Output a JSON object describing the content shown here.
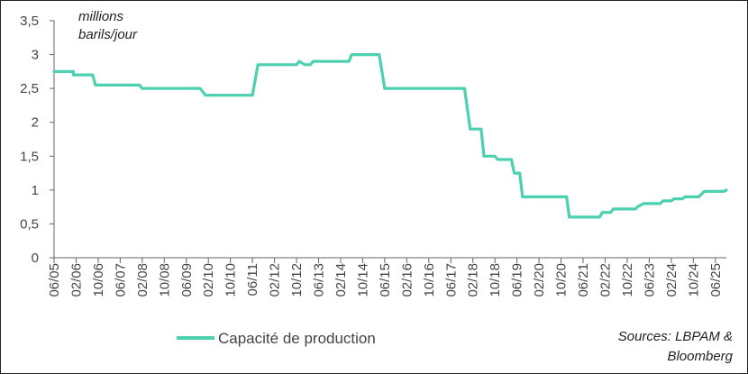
{
  "chart_data": {
    "type": "line",
    "ylabel_lines": [
      "millions",
      "barils/jour"
    ],
    "ylim": [
      0,
      3.5
    ],
    "y_ticks": [
      "0",
      "0,5",
      "1",
      "1,5",
      "2",
      "2,5",
      "3",
      "3,5"
    ],
    "x_start": "2005-06",
    "x_end": "2025-10",
    "x_tick_labels": [
      "06/05",
      "02/06",
      "10/06",
      "06/07",
      "02/08",
      "10/08",
      "06/09",
      "02/10",
      "10/10",
      "06/11",
      "02/12",
      "10/12",
      "06/13",
      "02/14",
      "10/14",
      "06/15",
      "02/16",
      "10/16",
      "06/17",
      "02/18",
      "10/18",
      "06/19",
      "02/20",
      "10/20",
      "06/21",
      "02/22",
      "10/22",
      "06/23",
      "02/24",
      "10/24",
      "06/25"
    ],
    "grid": false,
    "legend_position": "bottom",
    "series": [
      {
        "name": "Capacité de production",
        "color": "#4dd0b0",
        "points": [
          {
            "x": "2005-06",
            "y": 2.75
          },
          {
            "x": "2006-01",
            "y": 2.75
          },
          {
            "x": "2006-01",
            "y": 2.7
          },
          {
            "x": "2006-08",
            "y": 2.7
          },
          {
            "x": "2006-09",
            "y": 2.55
          },
          {
            "x": "2008-01",
            "y": 2.55
          },
          {
            "x": "2008-02",
            "y": 2.5
          },
          {
            "x": "2009-11",
            "y": 2.5
          },
          {
            "x": "2010-01",
            "y": 2.4
          },
          {
            "x": "2011-06",
            "y": 2.4
          },
          {
            "x": "2011-08",
            "y": 2.85
          },
          {
            "x": "2012-10",
            "y": 2.85
          },
          {
            "x": "2012-11",
            "y": 2.9
          },
          {
            "x": "2013-01",
            "y": 2.85
          },
          {
            "x": "2013-03",
            "y": 2.85
          },
          {
            "x": "2013-04",
            "y": 2.9
          },
          {
            "x": "2014-05",
            "y": 2.9
          },
          {
            "x": "2014-06",
            "y": 3.0
          },
          {
            "x": "2015-04",
            "y": 3.0
          },
          {
            "x": "2015-06",
            "y": 2.5
          },
          {
            "x": "2017-11",
            "y": 2.5
          },
          {
            "x": "2018-01",
            "y": 1.9
          },
          {
            "x": "2018-05",
            "y": 1.9
          },
          {
            "x": "2018-06",
            "y": 1.5
          },
          {
            "x": "2018-10",
            "y": 1.5
          },
          {
            "x": "2018-11",
            "y": 1.45
          },
          {
            "x": "2019-04",
            "y": 1.45
          },
          {
            "x": "2019-05",
            "y": 1.25
          },
          {
            "x": "2019-07",
            "y": 1.25
          },
          {
            "x": "2019-08",
            "y": 0.9
          },
          {
            "x": "2020-12",
            "y": 0.9
          },
          {
            "x": "2021-01",
            "y": 0.6
          },
          {
            "x": "2021-12",
            "y": 0.6
          },
          {
            "x": "2022-01",
            "y": 0.67
          },
          {
            "x": "2022-04",
            "y": 0.67
          },
          {
            "x": "2022-05",
            "y": 0.72
          },
          {
            "x": "2023-01",
            "y": 0.72
          },
          {
            "x": "2023-02",
            "y": 0.76
          },
          {
            "x": "2023-04",
            "y": 0.8
          },
          {
            "x": "2023-10",
            "y": 0.8
          },
          {
            "x": "2023-11",
            "y": 0.84
          },
          {
            "x": "2024-02",
            "y": 0.84
          },
          {
            "x": "2024-03",
            "y": 0.87
          },
          {
            "x": "2024-06",
            "y": 0.87
          },
          {
            "x": "2024-07",
            "y": 0.9
          },
          {
            "x": "2024-12",
            "y": 0.9
          },
          {
            "x": "2025-02",
            "y": 0.98
          },
          {
            "x": "2025-09",
            "y": 0.98
          },
          {
            "x": "2025-10",
            "y": 1.0
          }
        ]
      }
    ]
  },
  "source_lines": [
    "Sources: LBPAM &",
    "Bloomberg"
  ]
}
